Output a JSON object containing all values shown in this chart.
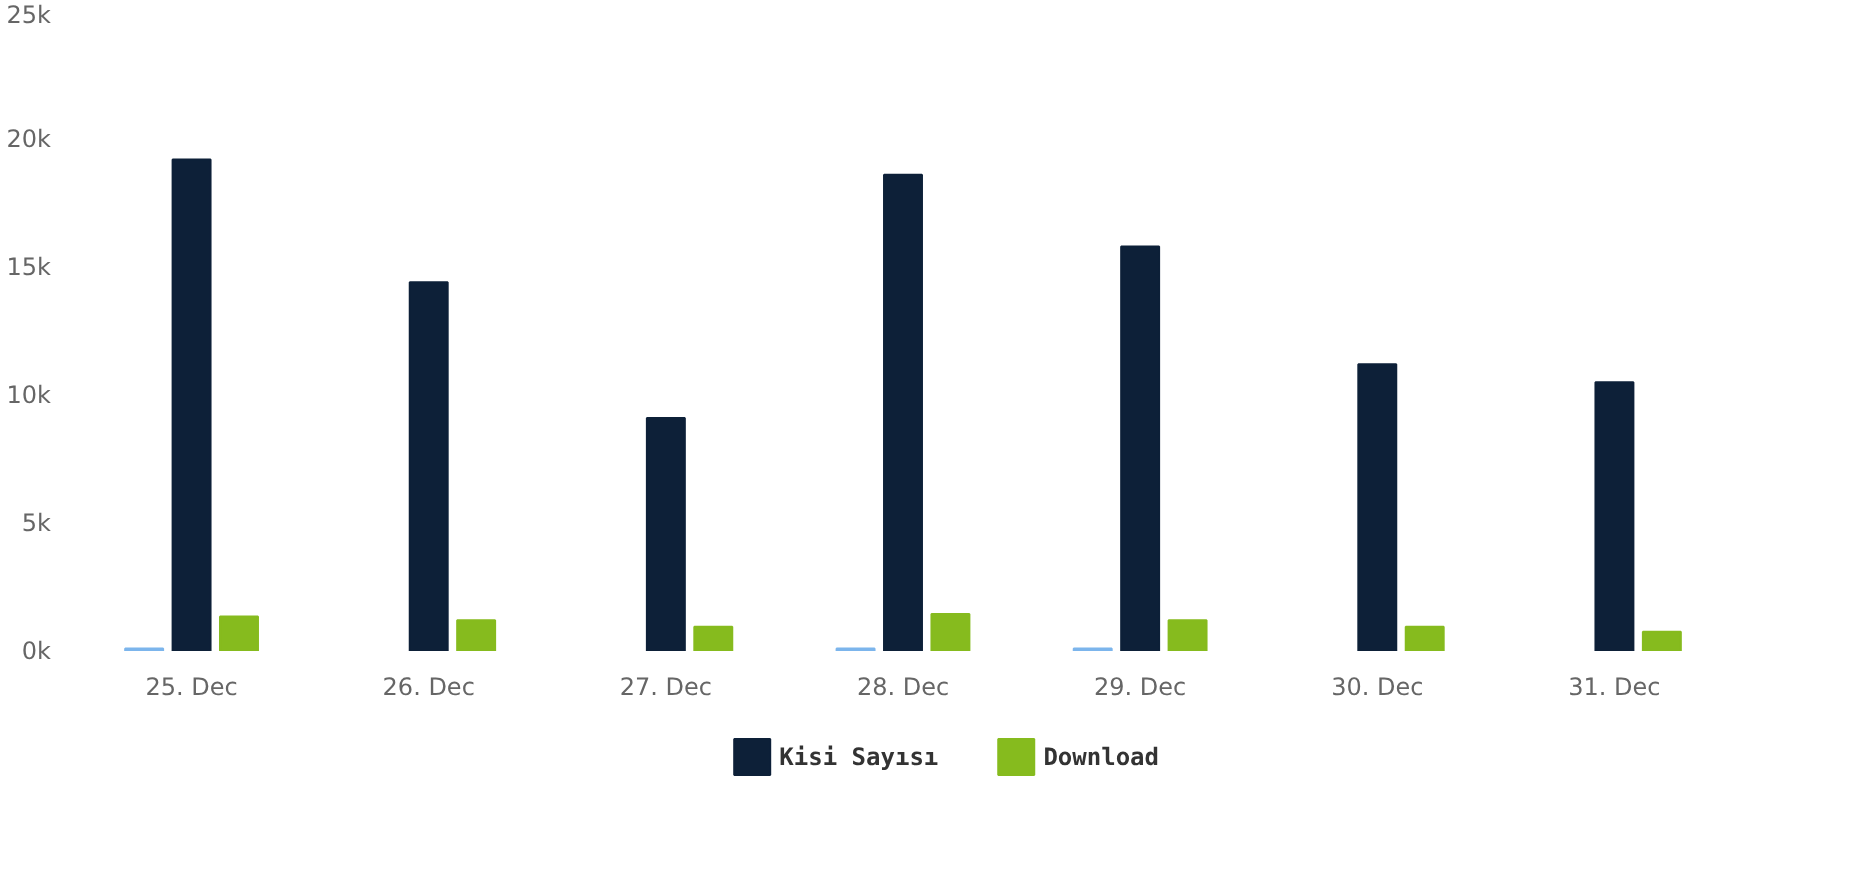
{
  "chart_data": {
    "type": "bar",
    "categories": [
      "25. Dec",
      "26. Dec",
      "27. Dec",
      "28. Dec",
      "29. Dec",
      "30. Dec",
      "31. Dec"
    ],
    "series": [
      {
        "color": "#7cb5ec",
        "values": [
          100,
          null,
          null,
          100,
          100,
          null,
          null
        ]
      },
      {
        "name": "Kisi Sayısı",
        "color": "#0d2038",
        "values": [
          19200,
          14400,
          9100,
          18600,
          15800,
          11200,
          10500
        ]
      },
      {
        "name": "Download",
        "color": "#86bb1e",
        "values": [
          1350,
          1200,
          950,
          1450,
          1200,
          950,
          750
        ]
      }
    ],
    "ylim": [
      0,
      25000
    ],
    "yticks": [
      {
        "value": 0,
        "label": "0k"
      },
      {
        "value": 5000,
        "label": "5k"
      },
      {
        "value": 10000,
        "label": "10k"
      },
      {
        "value": 15000,
        "label": "15k"
      },
      {
        "value": 20000,
        "label": "20k"
      },
      {
        "value": 25000,
        "label": "25k"
      }
    ],
    "grid": false,
    "legend": "bottom"
  }
}
